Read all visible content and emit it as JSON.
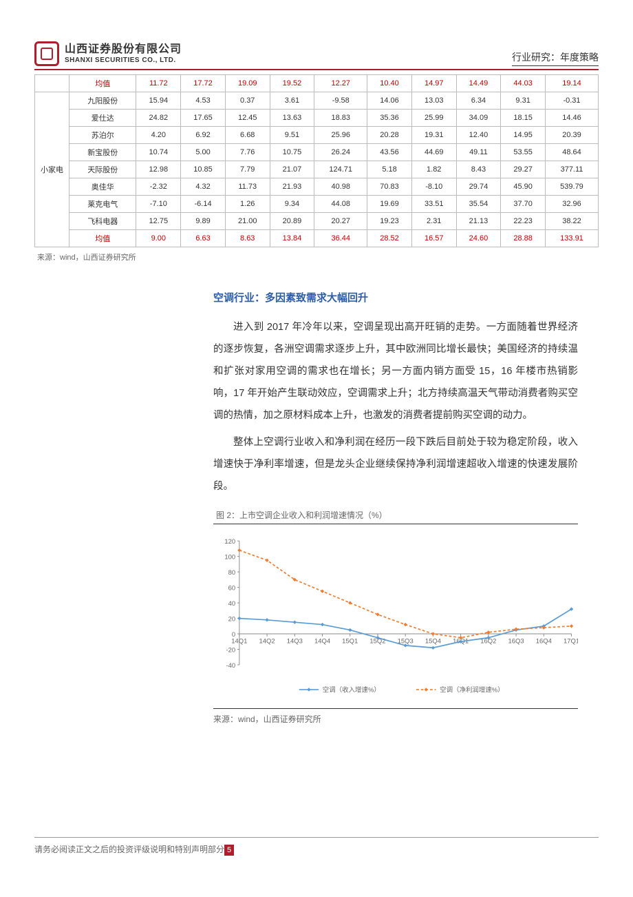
{
  "header": {
    "brand_cn": "山西证券股份有限公司",
    "brand_en": "SHANXI SECURITIES CO., LTD.",
    "right_label": "行业研究：年度策略"
  },
  "table": {
    "category_label": "小家电",
    "rows": [
      {
        "name": "均值",
        "v": [
          "11.72",
          "17.72",
          "19.09",
          "19.52",
          "12.27",
          "10.40",
          "14.97",
          "14.49",
          "44.03",
          "19.14"
        ],
        "red": true
      },
      {
        "name": "九阳股份",
        "v": [
          "15.94",
          "4.53",
          "0.37",
          "3.61",
          "-9.58",
          "14.06",
          "13.03",
          "6.34",
          "9.31",
          "-0.31"
        ]
      },
      {
        "name": "爱仕达",
        "v": [
          "24.82",
          "17.65",
          "12.45",
          "13.63",
          "18.83",
          "35.36",
          "25.99",
          "34.09",
          "18.15",
          "14.46"
        ]
      },
      {
        "name": "苏泊尔",
        "v": [
          "4.20",
          "6.92",
          "6.68",
          "9.51",
          "25.96",
          "20.28",
          "19.31",
          "12.40",
          "14.95",
          "20.39"
        ]
      },
      {
        "name": "新宝股份",
        "v": [
          "10.74",
          "5.00",
          "7.76",
          "10.75",
          "26.24",
          "43.56",
          "44.69",
          "49.11",
          "53.55",
          "48.64"
        ]
      },
      {
        "name": "天际股份",
        "v": [
          "12.98",
          "10.85",
          "7.79",
          "21.07",
          "124.71",
          "5.18",
          "1.82",
          "8.43",
          "29.27",
          "377.11"
        ]
      },
      {
        "name": "奥佳华",
        "v": [
          "-2.32",
          "4.32",
          "11.73",
          "21.93",
          "40.98",
          "70.83",
          "-8.10",
          "29.74",
          "45.90",
          "539.79"
        ]
      },
      {
        "name": "莱克电气",
        "v": [
          "-7.10",
          "-6.14",
          "1.26",
          "9.34",
          "44.08",
          "19.69",
          "33.51",
          "35.54",
          "37.70",
          "32.96"
        ]
      },
      {
        "name": "飞科电器",
        "v": [
          "12.75",
          "9.89",
          "21.00",
          "20.89",
          "20.27",
          "19.23",
          "2.31",
          "21.13",
          "22.23",
          "38.22"
        ]
      },
      {
        "name": "均值",
        "v": [
          "9.00",
          "6.63",
          "8.63",
          "13.84",
          "36.44",
          "28.52",
          "16.57",
          "24.60",
          "28.88",
          "133.91"
        ],
        "red": true
      }
    ],
    "source": "来源：wind，山西证券研究所"
  },
  "body": {
    "section_title": "空调行业：多因素致需求大幅回升",
    "p1": "进入到 2017 年冷年以来，空调呈现出高开旺销的走势。一方面随着世界经济的逐步恢复，各洲空调需求逐步上升，其中欧洲同比增长最快；美国经济的持续温和扩张对家用空调的需求也在增长；另一方面内销方面受 15，16 年楼市热销影响，17 年开始产生联动效应，空调需求上升；北方持续高温天气带动消费者购买空调的热情，加之原材料成本上升，也激发的消费者提前购买空调的动力。",
    "p2": "整体上空调行业收入和净利润在经历一段下跌后目前处于较为稳定阶段，收入增速快于净利率增速，但是龙头企业继续保持净利润增速超收入增速的快速发展阶段。"
  },
  "chart": {
    "title": "图 2：上市空调企业收入和利润增速情况（%）",
    "type": "line",
    "x_labels": [
      "14Q1",
      "14Q2",
      "14Q3",
      "14Q4",
      "15Q1",
      "15Q2",
      "15Q3",
      "15Q4",
      "16Q1",
      "16Q2",
      "16Q3",
      "16Q4",
      "17Q1"
    ],
    "ylim": [
      -40,
      120
    ],
    "ytick_step": 20,
    "y_ticks": [
      -40,
      -20,
      0,
      20,
      40,
      60,
      80,
      100,
      120
    ],
    "series": [
      {
        "name": "空调（收入增速%）",
        "color": "#5b9bd5",
        "dash": "0",
        "values": [
          20,
          18,
          15,
          12,
          5,
          -5,
          -15,
          -18,
          -10,
          -5,
          5,
          10,
          32
        ]
      },
      {
        "name": "空调（净利润增速%）",
        "color": "#ed7d31",
        "dash": "4 3",
        "values": [
          108,
          95,
          70,
          55,
          40,
          25,
          12,
          0,
          -5,
          2,
          6,
          8,
          10
        ]
      }
    ],
    "legend": [
      "空调（收入增速%）",
      "空调（净利润增速%）"
    ],
    "source": "来源：wind，山西证券研究所",
    "axis_color": "#888888",
    "grid_color": "#e0e0e0",
    "label_fontsize": 10,
    "legend_fontsize": 10
  },
  "footer": {
    "text": "请务必阅读正文之后的投资评级说明和特别声明部分",
    "page": "5"
  }
}
